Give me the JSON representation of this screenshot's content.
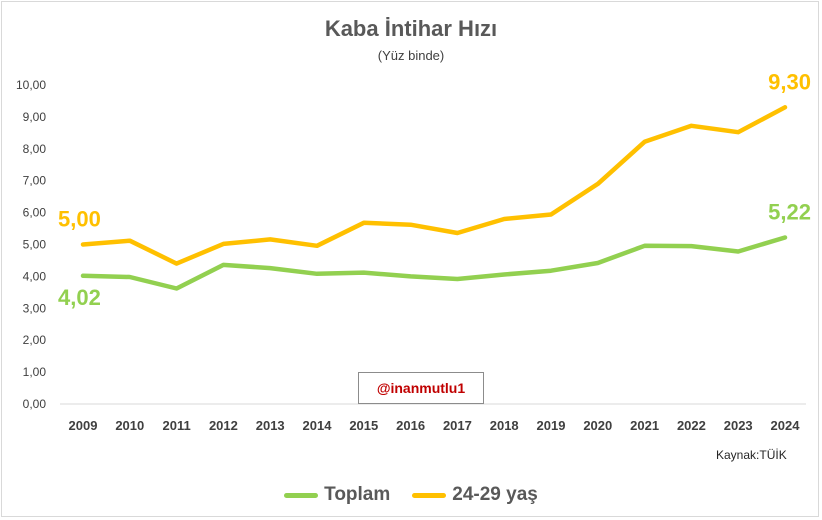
{
  "chart_data": {
    "type": "line",
    "title": "Kaba İntihar Hızı",
    "subtitle": "(Yüz binde)",
    "categories": [
      "2009",
      "2010",
      "2011",
      "2012",
      "2013",
      "2014",
      "2015",
      "2016",
      "2017",
      "2018",
      "2019",
      "2020",
      "2021",
      "2022",
      "2023",
      "2024"
    ],
    "y_ticks": [
      "0,00",
      "1,00",
      "2,00",
      "3,00",
      "4,00",
      "5,00",
      "6,00",
      "7,00",
      "8,00",
      "9,00",
      "10,00"
    ],
    "ylim": [
      0,
      10
    ],
    "grid": false,
    "legend_position": "bottom",
    "series": [
      {
        "name": "Toplam",
        "color": "#92d050",
        "values": [
          4.02,
          3.98,
          3.62,
          4.36,
          4.26,
          4.08,
          4.12,
          4.0,
          3.92,
          4.06,
          4.18,
          4.42,
          4.96,
          4.95,
          4.78,
          5.22
        ],
        "labels": [
          {
            "index": 0,
            "text": "4,02"
          },
          {
            "index": 15,
            "text": "5,22"
          }
        ]
      },
      {
        "name": "24-29 yaş",
        "color": "#ffc000",
        "values": [
          5.0,
          5.12,
          4.4,
          5.02,
          5.16,
          4.96,
          5.68,
          5.62,
          5.36,
          5.8,
          5.94,
          6.9,
          8.22,
          8.72,
          8.52,
          9.3
        ],
        "labels": [
          {
            "index": 0,
            "text": "5,00"
          },
          {
            "index": 15,
            "text": "9,30"
          }
        ]
      }
    ]
  },
  "watermark": "@inanmutlu1",
  "source": "Kaynak:TÜİK"
}
